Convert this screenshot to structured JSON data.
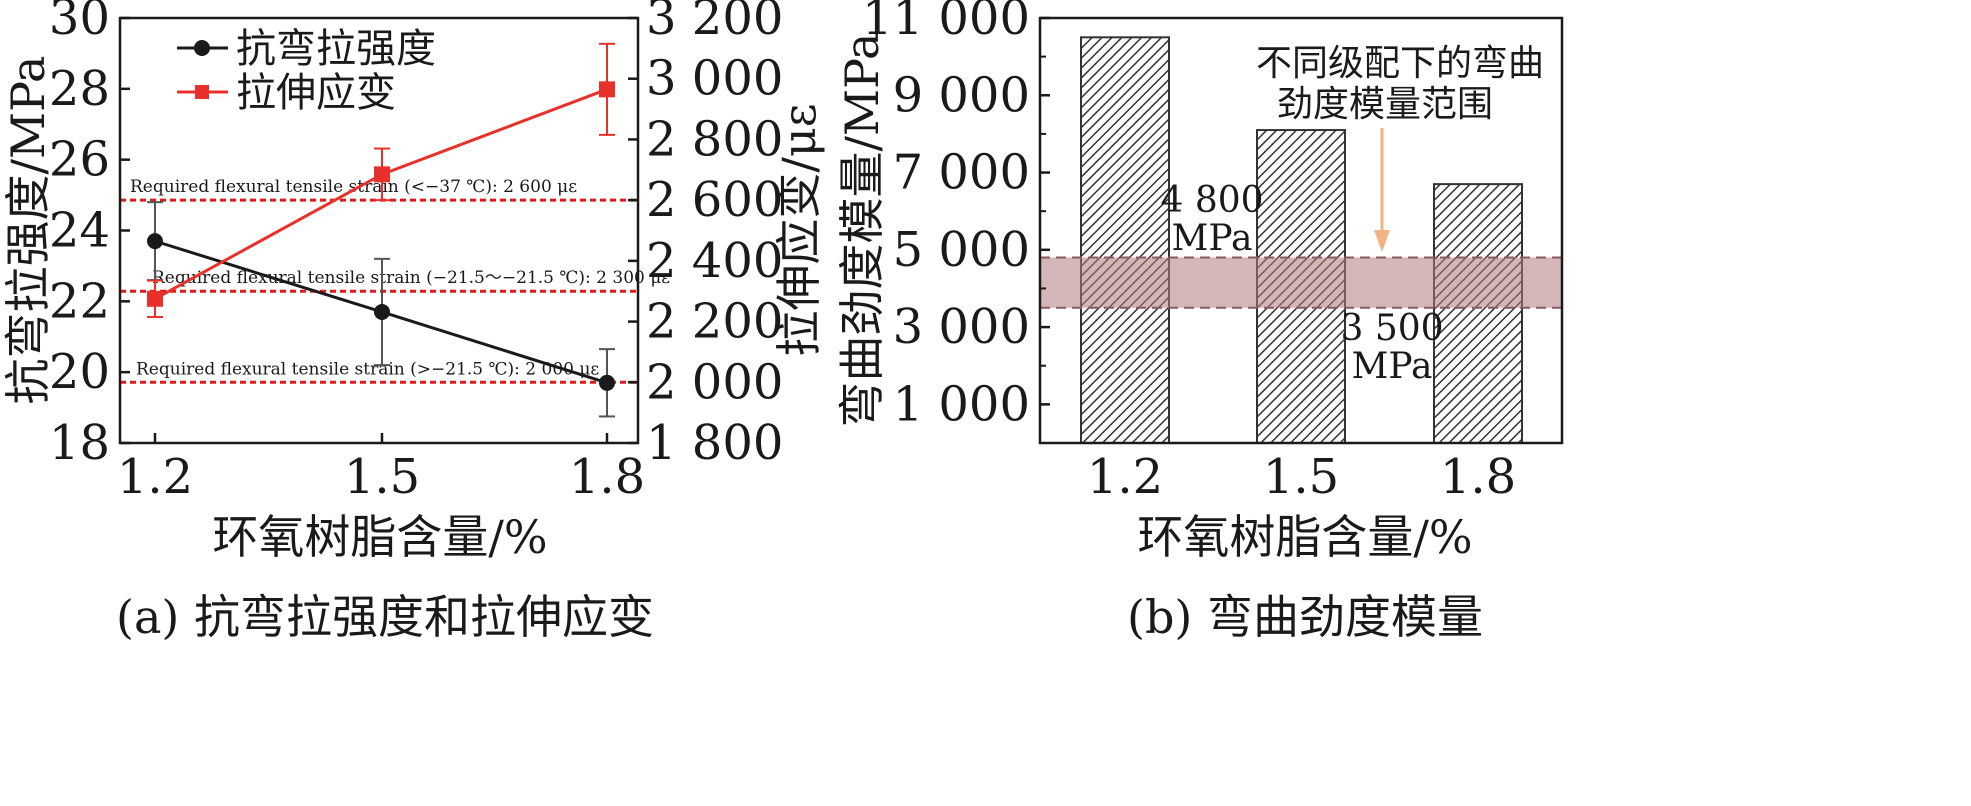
{
  "chart_data": [
    {
      "type": "line",
      "title": "",
      "caption": "(a) 抗弯拉强度和拉伸应变",
      "xlabel": "环氧树脂含量/%",
      "ylabel_left": "抗弯拉强度/MPa",
      "ylabel_right": "拉伸应变/με",
      "x": [
        1.2,
        1.5,
        1.8
      ],
      "x_tick_labels": [
        "1.2",
        "1.5",
        "1.8"
      ],
      "y_left_lim": [
        18,
        30
      ],
      "y_left_ticks": [
        "18",
        "20",
        "22",
        "24",
        "26",
        "28",
        "30"
      ],
      "y_right_lim": [
        1800,
        3200
      ],
      "y_right_ticks": [
        "1 800",
        "2 000",
        "2 200",
        "2 400",
        "2 600",
        "2 800",
        "3 000",
        "3 200"
      ],
      "legend_placement": "top-left",
      "grid": false,
      "colors": {
        "strength": "#1a1a1a",
        "strain": "#e8312b",
        "reference": "#e0191b"
      },
      "series": [
        {
          "name": "抗弯拉强度",
          "axis": "left",
          "marker": "circle",
          "values": [
            23.7,
            21.7,
            19.7
          ],
          "error": [
            1.1,
            1.5,
            0.95
          ]
        },
        {
          "name": "拉伸应变",
          "axis": "right",
          "marker": "square",
          "values": [
            2275,
            2685,
            2965
          ],
          "error": [
            60,
            85,
            150
          ]
        }
      ],
      "reference_lines": [
        {
          "axis": "right",
          "value": 2600,
          "label": "Required flexural tensile strain (<−37 ℃): 2 600 με"
        },
        {
          "axis": "right",
          "value": 2300,
          "label": "Required flexural tensile strain (−21.5～−21.5 ℃): 2 300 με"
        },
        {
          "axis": "right",
          "value": 2000,
          "label": "Required flexural tensile strain (>−21.5 ℃): 2 000 με"
        }
      ]
    },
    {
      "type": "bar",
      "title": "",
      "caption": "(b) 弯曲劲度模量",
      "xlabel": "环氧树脂含量/%",
      "ylabel": "弯曲劲度模量/MPa",
      "categories": [
        "1.2",
        "1.5",
        "1.8"
      ],
      "values": [
        10500,
        8100,
        6700
      ],
      "ylim": [
        0,
        11000
      ],
      "y_ticks": [
        "1 000",
        "3 000",
        "5 000",
        "7 000",
        "9 000",
        "11 000"
      ],
      "y_tick_values": [
        1000,
        3000,
        5000,
        7000,
        9000,
        11000
      ],
      "grid": false,
      "bar_style": "diagonal-hatch",
      "colors": {
        "band": "#b07a80",
        "arrow": "#f4b183"
      },
      "band": {
        "low": 3500,
        "high": 4800
      },
      "annotations": {
        "range_note": [
          "不同级配下的弯曲",
          "劲度模量范围"
        ],
        "upper_label": [
          "4 800",
          "MPa"
        ],
        "lower_label": [
          "3 500",
          "MPa"
        ]
      }
    }
  ]
}
